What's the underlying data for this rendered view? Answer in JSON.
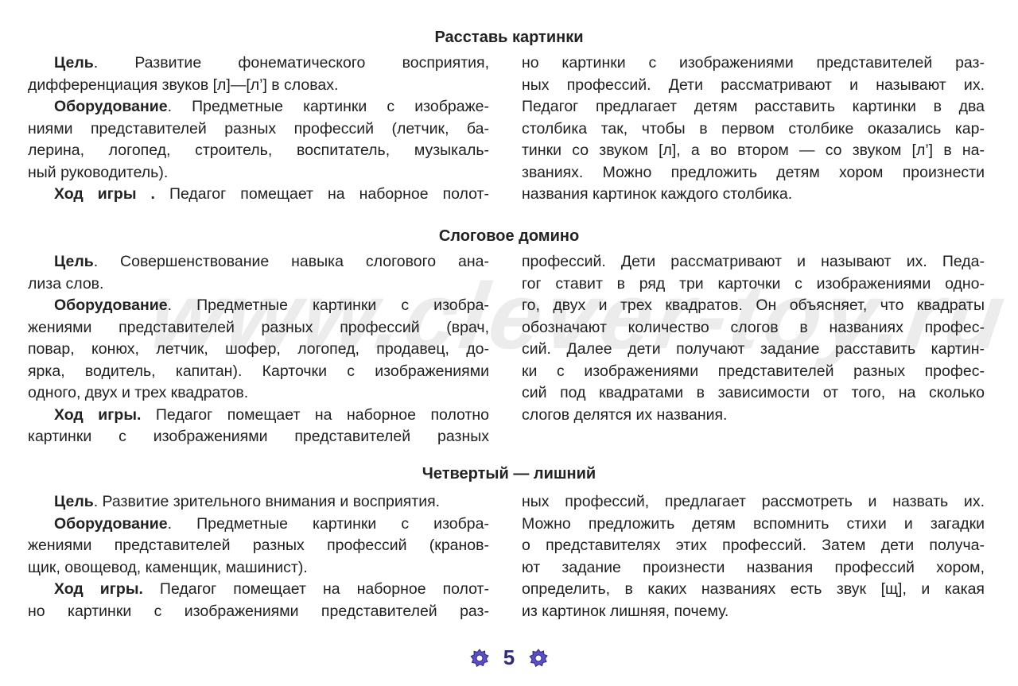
{
  "watermark": "www.clever-toy.ru",
  "colors": {
    "accent": "#5a4fc8",
    "page_number": "#2c2a7a"
  },
  "sections": [
    {
      "title": "Расставь картинки",
      "left": [
        {
          "b": "Цель",
          "t": ". Развитие фонематического восприятия,",
          "ind": true
        },
        {
          "t": "дифференциация звуков [л]—[л’] в словах.",
          "end": true
        },
        {
          "b": "Оборудование",
          "t": ". Предметные картинки с изображе-",
          "ind": true
        },
        {
          "t": "ниями представителей разных профессий (летчик, ба-"
        },
        {
          "t": "лерина, логопед, строитель, воспитатель, музыкаль-"
        },
        {
          "t": "ный руководитель).",
          "end": true
        },
        {
          "b": "Ход игры .",
          "t": " Педагог помещает на наборное полот-",
          "ind": true
        }
      ],
      "right": [
        {
          "t": "но картинки с изображениями представителей раз-"
        },
        {
          "t": "ных профессий. Дети рассматривают и называют их."
        },
        {
          "t": "Педагог предлагает детям расставить картинки в два"
        },
        {
          "t": "столбика так, чтобы в первом столбике оказались кар-"
        },
        {
          "t": "тинки со звуком [л], а во втором — со звуком [л’] в на-"
        },
        {
          "t": "званиях. Можно предложить детям хором произнести"
        },
        {
          "t": "названия картинок каждого столбика.",
          "end": true
        }
      ]
    },
    {
      "title": "Слоговое домино",
      "left": [
        {
          "b": "Цель",
          "t": ". Совершенствование навыка слогового ана-",
          "ind": true
        },
        {
          "t": "лиза слов.",
          "end": true
        },
        {
          "b": "Оборудование",
          "t": ". Предметные картинки с изобра-",
          "ind": true
        },
        {
          "t": "жениями представителей разных профессий (врач,"
        },
        {
          "t": "повар, конюх, летчик, шофер, логопед, продавец, до-"
        },
        {
          "t": "ярка, водитель, капитан). Карточки с изображениями"
        },
        {
          "t": "одного, двух и трех квадратов.",
          "end": true
        },
        {
          "b": "Ход игры.",
          "t": " Педагог помещает на наборное полотно",
          "ind": true
        },
        {
          "t": "картинки с изображениями представителей разных"
        }
      ],
      "right": [
        {
          "t": "профессий. Дети рассматривают и называют их. Педа-"
        },
        {
          "t": "гог ставит в ряд три карточки с изображениями одно-"
        },
        {
          "t": "го, двух и трех квадратов. Он объясняет, что квадраты"
        },
        {
          "t": "обозначают количество слогов в названиях профес-"
        },
        {
          "t": "сий. Далее дети получают задание расставить картин-"
        },
        {
          "t": "ки с изображениями представителей разных профес-"
        },
        {
          "t": "сий под квадратами в зависимости от того, на сколько"
        },
        {
          "t": "слогов делятся их названия.",
          "end": true
        }
      ]
    },
    {
      "title": "Четвертый — лишний",
      "left": [
        {
          "b": "Цель",
          "t": ". Развитие зрительного внимания и восприятия.",
          "ind": true,
          "end": true
        },
        {
          "b": "Оборудование",
          "t": ". Предметные картинки с изобра-",
          "ind": true
        },
        {
          "t": "жениями представителей разных профессий (кранов-"
        },
        {
          "t": "щик, овощевод, каменщик, машинист).",
          "end": true
        },
        {
          "b": "Ход игры.",
          "t": " Педагог помещает на наборное полот-",
          "ind": true
        },
        {
          "t": "но картинки с изображениями представителей раз-"
        }
      ],
      "right": [
        {
          "t": "ных профессий, предлагает рассмотреть и назвать их."
        },
        {
          "t": "Можно предложить детям вспомнить стихи и загадки"
        },
        {
          "t": "о представителях этих профессий. Затем дети получа-"
        },
        {
          "t": "ют задание произнести названия профессий хором,"
        },
        {
          "t": "определить, в каких названиях есть звук [щ], и какая"
        },
        {
          "t": "из картинок лишняя, почему.",
          "end": true
        }
      ]
    }
  ],
  "footer": {
    "page_number": "5",
    "ornament_icon": "gear-flower-icon"
  }
}
